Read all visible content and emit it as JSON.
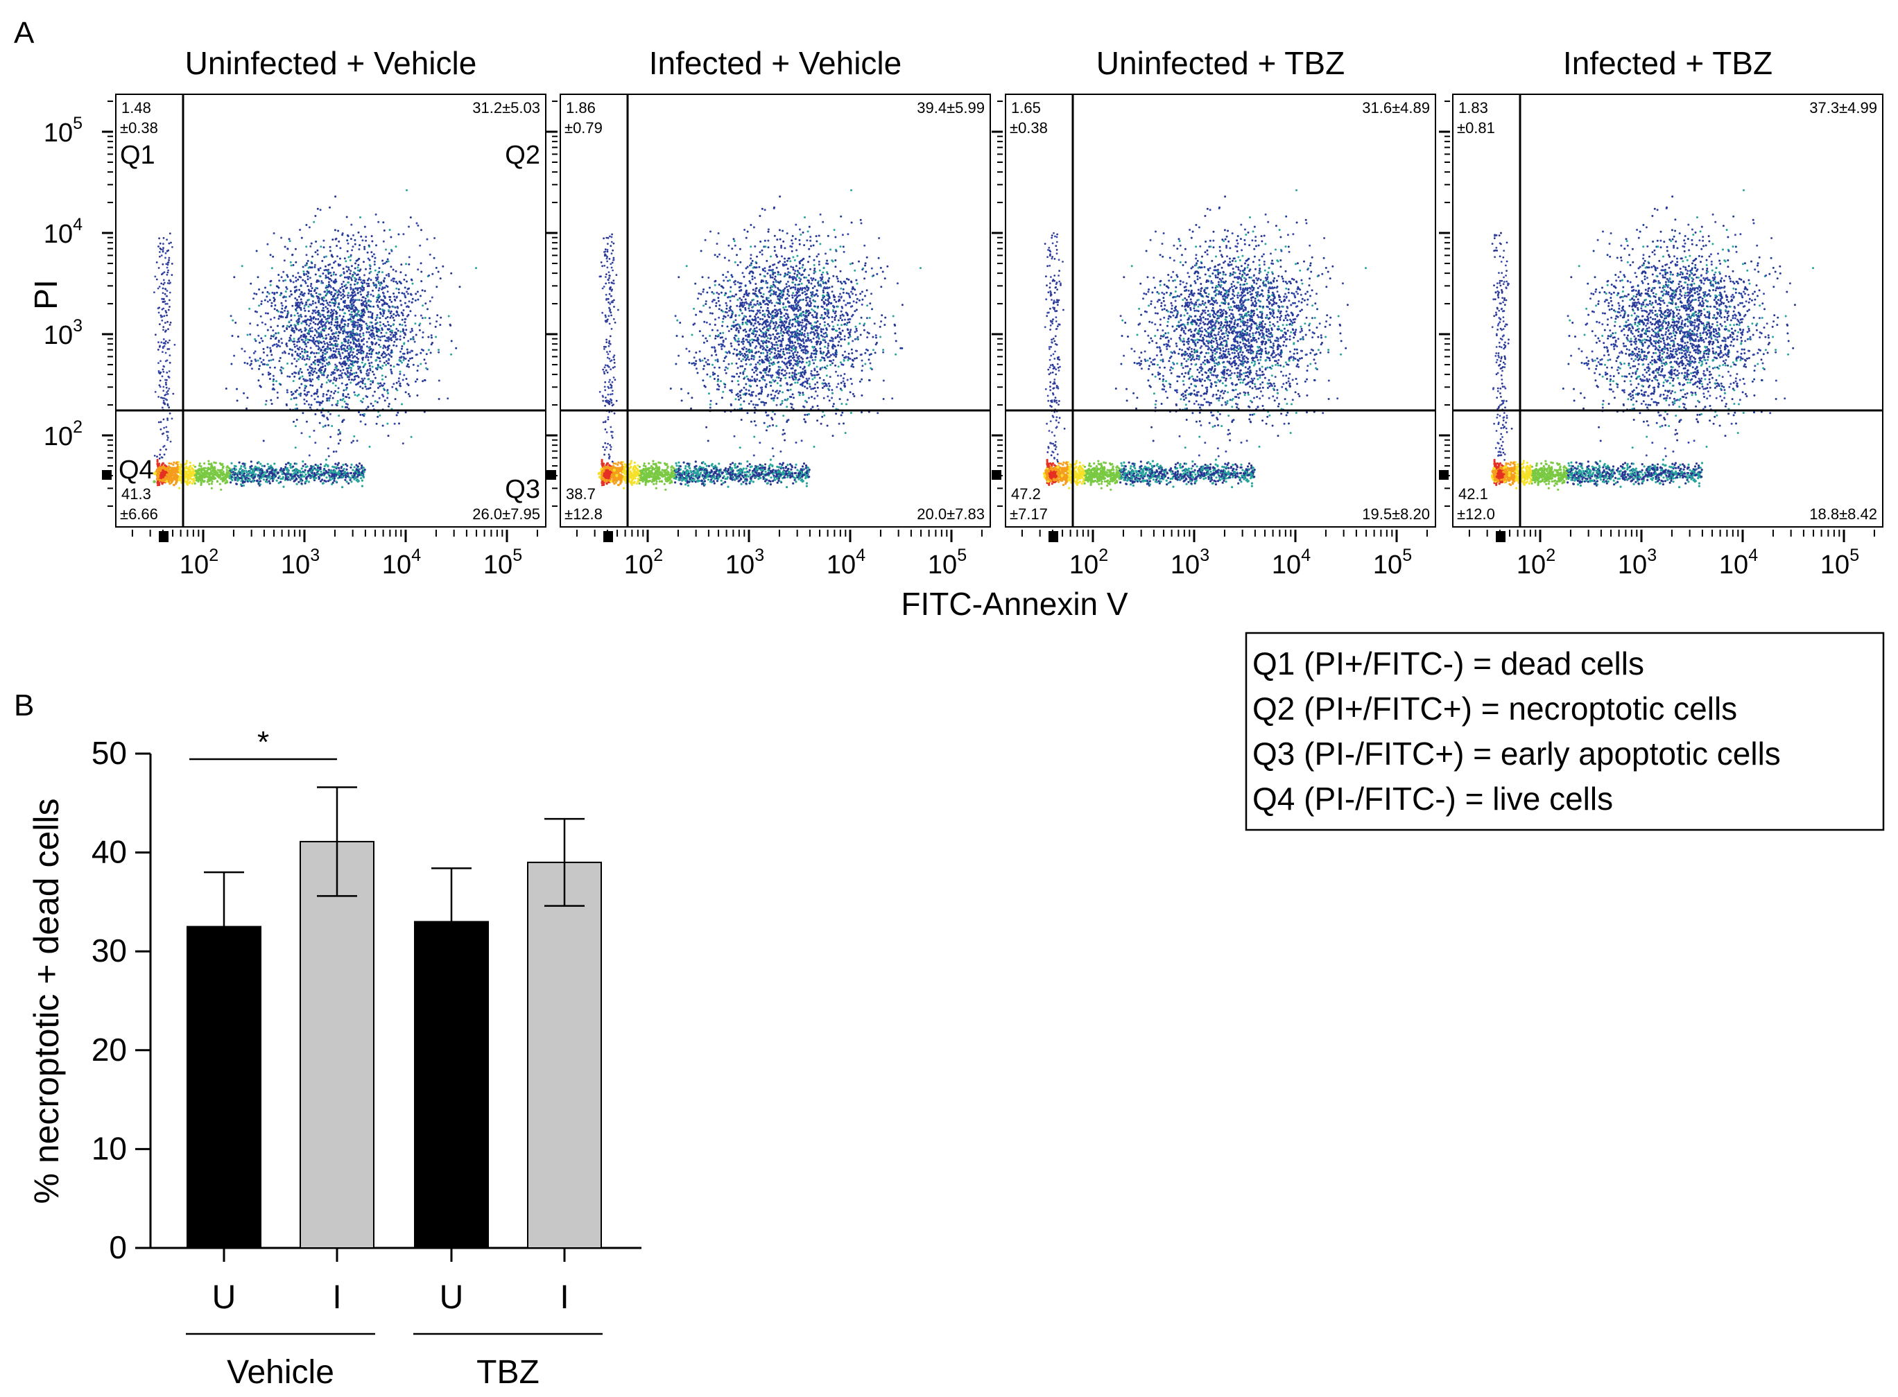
{
  "panel_a_label": "A",
  "panel_b_label": "B",
  "flow": {
    "x_axis_label": "FITC-Annexin V",
    "y_axis_label": "PI",
    "x_ticks": [
      "10",
      "10",
      "10",
      "10"
    ],
    "x_tick_exps": [
      "2",
      "3",
      "4",
      "5"
    ],
    "y_ticks": [
      "10",
      "10",
      "10",
      "10"
    ],
    "y_tick_exps": [
      "2",
      "3",
      "4",
      "5"
    ],
    "quadrant_labels": {
      "q1": "Q1",
      "q2": "Q2",
      "q3": "Q3",
      "q4": "Q4"
    },
    "panels": [
      {
        "title": "Uninfected + Vehicle",
        "q1_mean": "1.48",
        "q1_sd": "±0.38",
        "q2": "31.2±5.03",
        "q3": "26.0±7.95",
        "q4_mean": "41.3",
        "q4_sd": "±6.66"
      },
      {
        "title": "Infected + Vehicle",
        "q1_mean": "1.86",
        "q1_sd": "±0.79",
        "q2": "39.4±5.99",
        "q3": "20.0±7.83",
        "q4_mean": "38.7",
        "q4_sd": "±12.8"
      },
      {
        "title": "Uninfected + TBZ",
        "q1_mean": "1.65",
        "q1_sd": "±0.38",
        "q2": "31.6±4.89",
        "q3": "19.5±8.20",
        "q4_mean": "47.2",
        "q4_sd": "±7.17"
      },
      {
        "title": "Infected + TBZ",
        "q1_mean": "1.83",
        "q1_sd": "±0.81",
        "q2": "37.3±4.99",
        "q3": "18.8±8.42",
        "q4_mean": "42.1",
        "q4_sd": "±12.0"
      }
    ]
  },
  "legend": [
    "Q1 (PI+/FITC-) = dead cells",
    "Q2 (PI+/FITC+) = necroptotic cells",
    "Q3 (PI-/FITC+) = early apoptotic cells",
    "Q4 (PI-/FITC-) = live cells"
  ],
  "chart_data": {
    "type": "bar",
    "categories": [
      "U",
      "I",
      "U",
      "I"
    ],
    "groups": [
      "Vehicle",
      "TBZ"
    ],
    "values": [
      32.5,
      41.1,
      33.0,
      39.0
    ],
    "errors": [
      5.5,
      5.5,
      5.4,
      4.4
    ],
    "colors": [
      "#000000",
      "#c8c7c8",
      "#000000",
      "#c8c7c8"
    ],
    "ylabel": "% necroptotic + dead cells",
    "ylim": [
      0,
      50
    ],
    "yticks": [
      0,
      10,
      20,
      30,
      40,
      50
    ],
    "significance": {
      "between": [
        0,
        1
      ],
      "label": "*"
    }
  }
}
